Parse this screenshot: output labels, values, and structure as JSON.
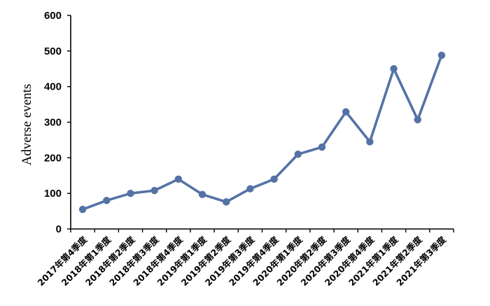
{
  "chart_data": {
    "type": "line",
    "title": "",
    "xlabel": "",
    "ylabel": "Adverse events",
    "ylim": [
      0,
      600
    ],
    "yticks": [
      0,
      100,
      200,
      300,
      400,
      500,
      600
    ],
    "grid": false,
    "legend": "none",
    "categories": [
      "2017年第4季度",
      "2018年第1季度",
      "2018年第2季度",
      "2018年第3季度",
      "2018年第4季度",
      "2019年第1季度",
      "2019年第2季度",
      "2019年第3季度",
      "2019年第4季度",
      "2020年第1季度",
      "2020年第2季度",
      "2020年第3季度",
      "2020年第4季度",
      "2021年第1季度",
      "2021年第2季度",
      "2021年第3季度"
    ],
    "series": [
      {
        "color": "#5472A5",
        "values": [
          55,
          80,
          100,
          108,
          140,
          97,
          76,
          113,
          140,
          210,
          230,
          329,
          245,
          450,
          307,
          488
        ]
      }
    ]
  }
}
